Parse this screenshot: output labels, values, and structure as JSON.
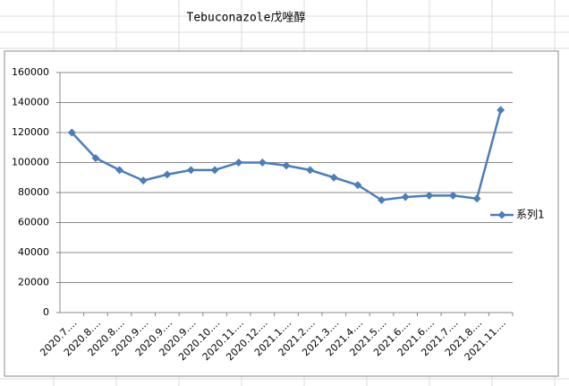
{
  "chart_data": {
    "type": "line",
    "title": "Tebuconazole戊唑醇",
    "categories": [
      "2020.7....",
      "2020.8....",
      "2020.8....",
      "2020.9....",
      "2020.9....",
      "2020.9....",
      "2020.10....",
      "2020.11....",
      "2020.12....",
      "2021.1....",
      "2021.2....",
      "2021.3....",
      "2021.4....",
      "2021.5....",
      "2021.6....",
      "2021.6....",
      "2021.7....",
      "2021.8....",
      "2021.11...."
    ],
    "series": [
      {
        "name": "系列1",
        "color": "#4a7ebb",
        "values": [
          120000,
          103000,
          95000,
          88000,
          92000,
          95000,
          95000,
          100000,
          100000,
          98000,
          95000,
          90000,
          85000,
          75000,
          77000,
          78000,
          78000,
          76000,
          135000
        ]
      }
    ],
    "ylim": [
      0,
      160000
    ],
    "yticks": [
      0,
      20000,
      40000,
      60000,
      80000,
      100000,
      120000,
      140000,
      160000
    ],
    "grid": true,
    "legend": "right"
  }
}
